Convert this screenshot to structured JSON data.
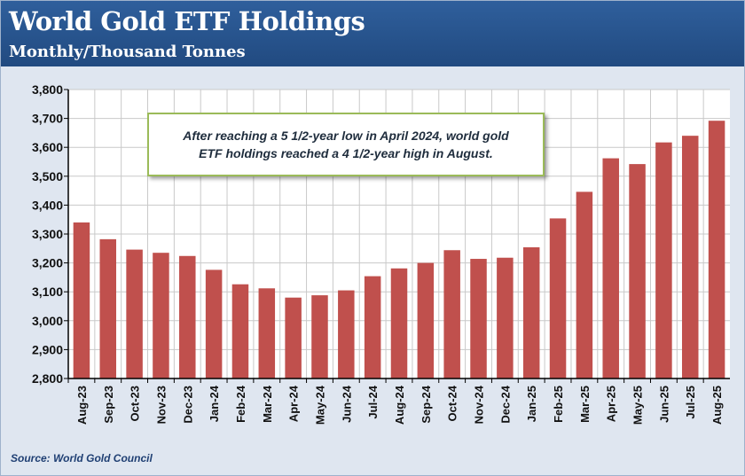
{
  "header": {
    "title": "World Gold ETF Holdings",
    "subtitle": "Monthly/Thousand Tonnes"
  },
  "annotation": {
    "line1": "After reaching a 5 1/2-year low in April 2024, world gold",
    "line2": "ETF holdings reached a 4 1/2-year high in August."
  },
  "source": "Source: World Gold Council",
  "colors": {
    "header_bg": "#2a5690",
    "bar": "#c0504d",
    "callout_border": "#9bbb59",
    "plot_bg": "#ffffff"
  },
  "chart_data": {
    "type": "bar",
    "title": "World Gold ETF Holdings",
    "subtitle": "Monthly/Thousand Tonnes",
    "xlabel": "",
    "ylabel": "",
    "ylim": [
      2800,
      3800
    ],
    "yticks": [
      2800,
      2900,
      3000,
      3100,
      3200,
      3300,
      3400,
      3500,
      3600,
      3700,
      3800
    ],
    "ytick_labels": [
      "2,800",
      "2,900",
      "3,000",
      "3,100",
      "3,200",
      "3,300",
      "3,400",
      "3,500",
      "3,600",
      "3,700",
      "3,800"
    ],
    "grid": true,
    "categories": [
      "Aug-23",
      "Sep-23",
      "Oct-23",
      "Nov-23",
      "Dec-23",
      "Jan-24",
      "Feb-24",
      "Mar-24",
      "Apr-24",
      "May-24",
      "Jun-24",
      "Jul-24",
      "Aug-24",
      "Sep-24",
      "Oct-24",
      "Nov-24",
      "Dec-24",
      "Jan-25",
      "Feb-25",
      "Mar-25",
      "Apr-25",
      "May-25",
      "Jun-25",
      "Jul-25",
      "Aug-25"
    ],
    "values": [
      3340,
      3282,
      3246,
      3235,
      3224,
      3176,
      3126,
      3112,
      3080,
      3088,
      3105,
      3154,
      3181,
      3200,
      3244,
      3214,
      3218,
      3254,
      3354,
      3446,
      3562,
      3542,
      3617,
      3640,
      3692
    ]
  }
}
